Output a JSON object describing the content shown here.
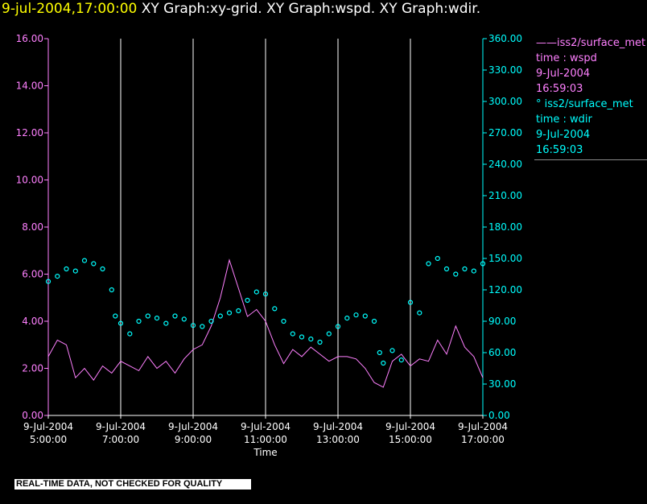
{
  "title": {
    "time": "9-jul-2004,17:00:00",
    "rest": "XY Graph:xy-grid.  XY Graph:wspd.  XY Graph:wdir."
  },
  "colors": {
    "background": "#000000",
    "wspd": "#ff80ff",
    "wdir": "#00ffff",
    "title_time": "#ffff00",
    "grid": "#ffffff"
  },
  "legend": [
    {
      "line1": "——iss2/surface_met",
      "line2": "time : wspd",
      "line3": "9-Jul-2004",
      "line4": "16:59:03",
      "color": "#ff80ff"
    },
    {
      "line1": "°  iss2/surface_met",
      "line2": "time : wdir",
      "line3": "9-Jul-2004",
      "line4": "16:59:03",
      "color": "#00ffff"
    }
  ],
  "qc_banner": "REAL-TIME DATA, NOT CHECKED FOR QUALITY",
  "chart_data": {
    "type": "line",
    "xlabel": "Time",
    "x_ticks": [
      {
        "hours": 5,
        "date": "9-Jul-2004",
        "time": "5:00:00"
      },
      {
        "hours": 7,
        "date": "9-Jul-2004",
        "time": "7:00:00"
      },
      {
        "hours": 9,
        "date": "9-Jul-2004",
        "time": "9:00:00"
      },
      {
        "hours": 11,
        "date": "9-Jul-2004",
        "time": "11:00:00"
      },
      {
        "hours": 13,
        "date": "9-Jul-2004",
        "time": "13:00:00"
      },
      {
        "hours": 15,
        "date": "9-Jul-2004",
        "time": "15:00:00"
      },
      {
        "hours": 17,
        "date": "9-Jul-2004",
        "time": "17:00:00"
      }
    ],
    "xlim": [
      5.0,
      17.0
    ],
    "grid": "vertical lines at each time tick",
    "y_left": {
      "ylim": [
        0,
        16
      ],
      "ticks": [
        "0.00",
        "2.00",
        "4.00",
        "6.00",
        "8.00",
        "10.00",
        "12.00",
        "14.00",
        "16.00"
      ],
      "color": "#ff80ff"
    },
    "y_right": {
      "ylim": [
        0,
        360
      ],
      "ticks": [
        "0.00",
        "30.00",
        "60.00",
        "90.00",
        "120.00",
        "150.00",
        "180.00",
        "210.00",
        "240.00",
        "270.00",
        "300.00",
        "330.00",
        "360.00"
      ],
      "color": "#00ffff"
    },
    "series": [
      {
        "name": "iss2/surface_met time : wspd",
        "axis": "left",
        "style": "line",
        "x": [
          5.0,
          5.25,
          5.5,
          5.75,
          6.0,
          6.25,
          6.5,
          6.75,
          7.0,
          7.25,
          7.5,
          7.75,
          8.0,
          8.25,
          8.5,
          8.75,
          9.0,
          9.25,
          9.5,
          9.75,
          10.0,
          10.25,
          10.5,
          10.75,
          11.0,
          11.25,
          11.5,
          11.75,
          12.0,
          12.25,
          12.5,
          12.75,
          13.0,
          13.25,
          13.5,
          13.75,
          14.0,
          14.25,
          14.5,
          14.75,
          15.0,
          15.25,
          15.5,
          15.75,
          16.0,
          16.25,
          16.5,
          16.75,
          17.0
        ],
        "y": [
          2.5,
          3.2,
          3.0,
          1.6,
          2.0,
          1.5,
          2.1,
          1.8,
          2.3,
          2.1,
          1.9,
          2.5,
          2.0,
          2.3,
          1.8,
          2.4,
          2.8,
          3.0,
          3.8,
          5.0,
          6.6,
          5.4,
          4.2,
          4.5,
          4.0,
          3.0,
          2.2,
          2.8,
          2.5,
          2.9,
          2.6,
          2.3,
          2.5,
          2.5,
          2.4,
          2.0,
          1.4,
          1.2,
          2.3,
          2.6,
          2.1,
          2.4,
          2.3,
          3.2,
          2.6,
          3.8,
          2.9,
          2.5,
          1.6
        ]
      },
      {
        "name": "iss2/surface_met time : wdir",
        "axis": "right",
        "style": "circles",
        "x": [
          5.0,
          5.25,
          5.5,
          5.75,
          6.0,
          6.25,
          6.5,
          6.75,
          6.85,
          7.0,
          7.25,
          7.5,
          7.75,
          8.0,
          8.25,
          8.5,
          8.75,
          9.0,
          9.25,
          9.5,
          9.75,
          10.0,
          10.25,
          10.5,
          10.75,
          11.0,
          11.25,
          11.5,
          11.75,
          12.0,
          12.25,
          12.5,
          12.75,
          13.0,
          13.25,
          13.5,
          13.75,
          14.0,
          14.15,
          14.25,
          14.5,
          14.75,
          15.0,
          15.25,
          15.5,
          15.75,
          16.0,
          16.25,
          16.5,
          16.75,
          17.0
        ],
        "y": [
          128,
          133,
          140,
          138,
          148,
          145,
          140,
          120,
          95,
          88,
          78,
          90,
          95,
          93,
          88,
          95,
          92,
          86,
          85,
          90,
          95,
          98,
          100,
          110,
          118,
          116,
          102,
          90,
          78,
          75,
          73,
          70,
          78,
          85,
          93,
          96,
          95,
          90,
          60,
          50,
          62,
          53,
          108,
          98,
          145,
          150,
          140,
          135,
          140,
          138,
          145
        ]
      }
    ]
  }
}
